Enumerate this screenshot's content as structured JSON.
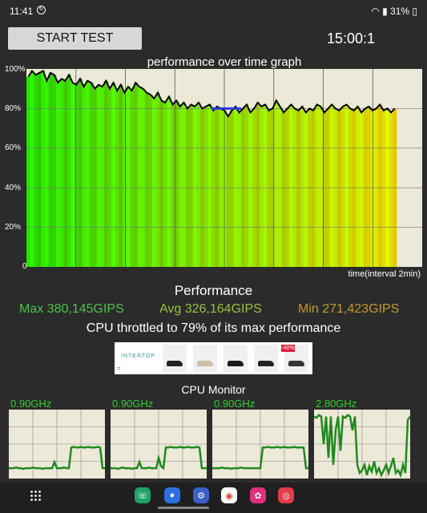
{
  "status_bar": {
    "time": "11:41",
    "right": "31%"
  },
  "header": {
    "start_button": "START TEST",
    "timer": "15:00:1"
  },
  "graph": {
    "title": "performance over time graph",
    "x_label": "time(interval 2min)",
    "y_ticks": [
      "100%",
      "80%",
      "60%",
      "40%",
      "20%",
      "0"
    ]
  },
  "chart_data": {
    "type": "bar",
    "title": "performance over time graph",
    "xlabel": "time(interval 2min)",
    "ylabel": "",
    "ylim": [
      0,
      100
    ],
    "values": [
      96,
      99,
      97,
      98,
      99,
      94,
      98,
      97,
      93,
      95,
      94,
      97,
      93,
      92,
      95,
      91,
      94,
      93,
      90,
      92,
      91,
      94,
      90,
      93,
      89,
      92,
      88,
      91,
      89,
      93,
      91,
      90,
      88,
      87,
      85,
      88,
      84,
      83,
      86,
      82,
      84,
      81,
      83,
      80,
      82,
      81,
      83,
      80,
      81,
      82,
      79,
      81,
      80,
      79,
      76,
      79,
      81,
      78,
      80,
      82,
      78,
      80,
      83,
      81,
      82,
      79,
      80,
      84,
      81,
      78,
      80,
      82,
      80,
      79,
      81,
      78,
      80,
      79,
      82,
      81,
      78,
      80,
      82,
      80,
      79,
      81,
      82,
      80,
      79,
      81,
      78,
      80,
      81,
      79,
      80,
      82,
      79,
      80,
      78,
      80
    ],
    "avg_line": {
      "from_index": 50,
      "to_index": 58,
      "value": 80
    }
  },
  "performance": {
    "title": "Performance",
    "max": "Max 380,145GIPS",
    "avg": "Avg 326,164GIPS",
    "min": "Min 271,423GIPS",
    "throttled": "CPU throttled to 79% of its max performance"
  },
  "ad": {
    "brand": "INTERTOP",
    "badge": "-40%",
    "eq": "="
  },
  "cpu_monitor": {
    "title": "CPU Monitor",
    "panels": [
      {
        "freq": "0.90GHz",
        "values": [
          15,
          15,
          15,
          16,
          15,
          15,
          14,
          15,
          15,
          15,
          16,
          15,
          15,
          15,
          14,
          15,
          15,
          15,
          15,
          24,
          15,
          15,
          15,
          16,
          15,
          15,
          45,
          46,
          45,
          45,
          46,
          45,
          45,
          46,
          45,
          45,
          45,
          46,
          45,
          15,
          15
        ]
      },
      {
        "freq": "0.90GHz",
        "values": [
          15,
          15,
          15,
          14,
          15,
          16,
          15,
          15,
          15,
          14,
          15,
          15,
          24,
          15,
          15,
          15,
          16,
          15,
          15,
          15,
          30,
          18,
          15,
          45,
          45,
          46,
          45,
          45,
          45,
          46,
          45,
          45,
          46,
          45,
          45,
          45,
          46,
          45,
          15,
          15,
          15
        ]
      },
      {
        "freq": "0.90GHz",
        "values": [
          15,
          15,
          15,
          15,
          16,
          15,
          15,
          15,
          14,
          15,
          15,
          15,
          16,
          15,
          15,
          15,
          15,
          15,
          15,
          15,
          15,
          45,
          45,
          46,
          45,
          45,
          45,
          46,
          45,
          45,
          46,
          45,
          45,
          45,
          46,
          45,
          45,
          45,
          45,
          15,
          15
        ]
      },
      {
        "freq": "2.80GHz",
        "values": [
          90,
          88,
          92,
          90,
          50,
          90,
          30,
          90,
          20,
          70,
          90,
          40,
          90,
          88,
          92,
          90,
          70,
          90,
          20,
          8,
          12,
          20,
          5,
          18,
          10,
          25,
          8,
          15,
          5,
          12,
          20,
          8,
          18,
          30,
          8,
          12,
          5,
          20,
          8,
          85,
          90
        ]
      }
    ]
  }
}
